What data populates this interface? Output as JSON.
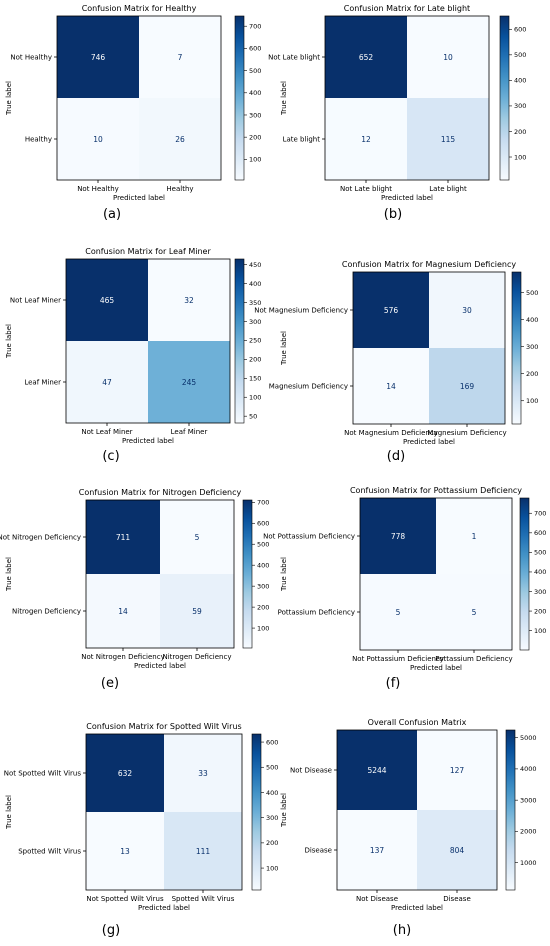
{
  "colors": {
    "cmap_low": "#f7fbff",
    "cmap_high": "#08306b",
    "light_text": "#ffffff",
    "dark_text": "#08306b"
  },
  "chart_data": [
    {
      "type": "heatmap",
      "id": "a",
      "caption": "(a)",
      "title": "Confusion Matrix for Healthy",
      "row_labels": [
        "Not Healthy",
        "Healthy"
      ],
      "col_labels": [
        "Not Healthy",
        "Healthy"
      ],
      "values": [
        [
          746,
          7
        ],
        [
          10,
          26
        ]
      ],
      "xlabel": "Predicted label",
      "ylabel": "True label",
      "colorbar": {
        "range": [
          7,
          746
        ],
        "ticks": [
          100,
          200,
          300,
          400,
          500,
          600,
          700
        ]
      }
    },
    {
      "type": "heatmap",
      "id": "b",
      "caption": "(b)",
      "title": "Confusion Matrix for Late blight",
      "row_labels": [
        "Not Late blight",
        "Late blight"
      ],
      "col_labels": [
        "Not Late blight",
        "Late blight"
      ],
      "values": [
        [
          652,
          10
        ],
        [
          12,
          115
        ]
      ],
      "xlabel": "Predicted label",
      "ylabel": "True label",
      "colorbar": {
        "range": [
          10,
          652
        ],
        "ticks": [
          100,
          200,
          300,
          400,
          500,
          600
        ]
      }
    },
    {
      "type": "heatmap",
      "id": "c",
      "caption": "(c)",
      "title": "Confusion Matrix for Leaf Miner",
      "row_labels": [
        "Not Leaf Miner",
        "Leaf Miner"
      ],
      "col_labels": [
        "Not Leaf Miner",
        "Leaf Miner"
      ],
      "values": [
        [
          465,
          32
        ],
        [
          47,
          245
        ]
      ],
      "xlabel": "Predicted label",
      "ylabel": "True label",
      "colorbar": {
        "range": [
          32,
          465
        ],
        "ticks": [
          50,
          100,
          150,
          200,
          250,
          300,
          350,
          400,
          450
        ]
      }
    },
    {
      "type": "heatmap",
      "id": "d",
      "caption": "(d)",
      "title": "Confusion Matrix for Magnesium Deficiency",
      "row_labels": [
        "Not Magnesium Deficiency",
        "Magnesium Deficiency"
      ],
      "col_labels": [
        "Not Magnesium Deficiency",
        "Magnesium Deficiency"
      ],
      "values": [
        [
          576,
          30
        ],
        [
          14,
          169
        ]
      ],
      "xlabel": "Predicted label",
      "ylabel": "True label",
      "colorbar": {
        "range": [
          14,
          576
        ],
        "ticks": [
          100,
          200,
          300,
          400,
          500
        ]
      }
    },
    {
      "type": "heatmap",
      "id": "e",
      "caption": "(e)",
      "title": "Confusion Matrix for Nitrogen Deficiency",
      "row_labels": [
        "Not Nitrogen Deficiency",
        "Nitrogen Deficiency"
      ],
      "col_labels": [
        "Not Nitrogen Deficiency",
        "Nitrogen Deficiency"
      ],
      "values": [
        [
          711,
          5
        ],
        [
          14,
          59
        ]
      ],
      "xlabel": "Predicted label",
      "ylabel": "True label",
      "colorbar": {
        "range": [
          5,
          711
        ],
        "ticks": [
          100,
          200,
          300,
          400,
          500,
          600,
          700
        ]
      }
    },
    {
      "type": "heatmap",
      "id": "f",
      "caption": "(f)",
      "title": "Confusion Matrix for Pottassium Deficiency",
      "row_labels": [
        "Not Pottassium Deficiency",
        "Pottassium Deficiency"
      ],
      "col_labels": [
        "Not Pottassium Deficiency",
        "Pottassium Deficiency"
      ],
      "values": [
        [
          778,
          1
        ],
        [
          5,
          5
        ]
      ],
      "xlabel": "Predicted label",
      "ylabel": "True label",
      "colorbar": {
        "range": [
          1,
          778
        ],
        "ticks": [
          100,
          200,
          300,
          400,
          500,
          600,
          700
        ]
      }
    },
    {
      "type": "heatmap",
      "id": "g",
      "caption": "(g)",
      "title": "Confusion Matrix for Spotted Wilt Virus",
      "row_labels": [
        "Not Spotted Wilt Virus",
        "Spotted Wilt Virus"
      ],
      "col_labels": [
        "Not Spotted Wilt Virus",
        "Spotted Wilt Virus"
      ],
      "values": [
        [
          632,
          33
        ],
        [
          13,
          111
        ]
      ],
      "xlabel": "Predicted label",
      "ylabel": "True label",
      "colorbar": {
        "range": [
          13,
          632
        ],
        "ticks": [
          100,
          200,
          300,
          400,
          500,
          600
        ]
      }
    },
    {
      "type": "heatmap",
      "id": "h",
      "caption": "(h)",
      "title": "Overall Confusion Matrix",
      "row_labels": [
        "Not Disease",
        "Disease"
      ],
      "col_labels": [
        "Not Disease",
        "Disease"
      ],
      "values": [
        [
          5244,
          127
        ],
        [
          137,
          804
        ]
      ],
      "xlabel": "Predicted label",
      "ylabel": "True label",
      "colorbar": {
        "range": [
          127,
          5244
        ],
        "ticks": [
          1000,
          2000,
          3000,
          4000,
          5000
        ]
      }
    }
  ]
}
